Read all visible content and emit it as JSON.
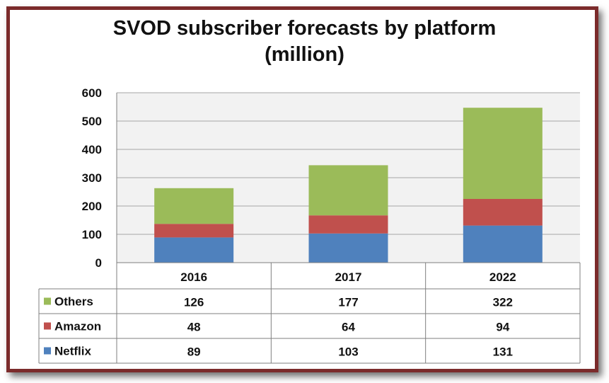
{
  "chart_data": {
    "type": "bar",
    "stacked": true,
    "title_line1": "SVOD subscriber forecasts by platform",
    "title_line2": "(million)",
    "categories": [
      "2016",
      "2017",
      "2022"
    ],
    "ylim": [
      0,
      600
    ],
    "y_ticks": [
      "0",
      "100",
      "200",
      "300",
      "400",
      "500",
      "600"
    ],
    "y_tick_values": [
      0,
      100,
      200,
      300,
      400,
      500,
      600
    ],
    "grid": true,
    "legend": "data-table",
    "series": [
      {
        "name": "Netflix",
        "values": [
          89,
          103,
          131
        ],
        "color": "#4f81bd"
      },
      {
        "name": "Amazon",
        "values": [
          48,
          64,
          94
        ],
        "color": "#c0504d"
      },
      {
        "name": "Others",
        "values": [
          126,
          177,
          322
        ],
        "color": "#9bbb59"
      }
    ],
    "table_rows": [
      {
        "name": "Others",
        "values": [
          "126",
          "177",
          "322"
        ],
        "color": "#9bbb59"
      },
      {
        "name": "Amazon",
        "values": [
          "48",
          "64",
          "94"
        ],
        "color": "#c0504d"
      },
      {
        "name": "Netflix",
        "values": [
          "89",
          "103",
          "131"
        ],
        "color": "#4f81bd"
      }
    ]
  },
  "colors": {
    "frame": "#7b2b2b",
    "plot_bg": "#f2f2f2",
    "grid": "#a6a6a6"
  }
}
